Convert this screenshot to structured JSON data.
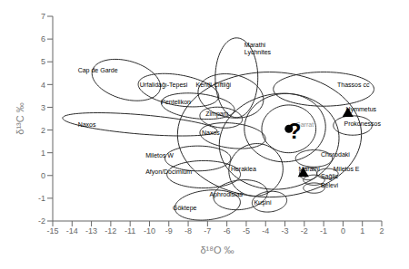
{
  "chart_data": {
    "type": "ellipse",
    "xlabel": "δ¹⁸O ‰",
    "ylabel": "δ¹³C ‰",
    "xlim": [
      -15,
      2
    ],
    "ylim": [
      -2,
      7
    ],
    "xticks": [
      -15,
      -14,
      -13,
      -12,
      -11,
      -10,
      -9,
      -8,
      -7,
      -6,
      -5,
      -4,
      -3,
      -2,
      -1,
      0,
      1,
      2
    ],
    "yticks": [
      -2,
      -1,
      0,
      1,
      2,
      3,
      4,
      5,
      6,
      7
    ],
    "grid": false,
    "color": "#2a2a2a",
    "ellipses": [
      {
        "cx": -11.2,
        "cy": 4.2,
        "w": 3.6,
        "h": 1.7,
        "angle": -12
      },
      {
        "cx": -10.5,
        "cy": 2.25,
        "w": 8.0,
        "h": 0.85,
        "angle": -4
      },
      {
        "cx": -8.5,
        "cy": 3.75,
        "w": 4.2,
        "h": 1.35,
        "angle": -8
      },
      {
        "cx": -7.5,
        "cy": 3.05,
        "w": 3.8,
        "h": 1.1,
        "angle": -5
      },
      {
        "cx": -7.5,
        "cy": 0.75,
        "w": 3.4,
        "h": 1.1,
        "angle": 0
      },
      {
        "cx": -7.2,
        "cy": 0.05,
        "w": 3.8,
        "h": 1.2,
        "angle": 0
      },
      {
        "cx": -7.0,
        "cy": -1.3,
        "w": 3.4,
        "h": 1.3,
        "angle": 5
      },
      {
        "cx": -5.5,
        "cy": 4.3,
        "w": 2.2,
        "h": 3.5,
        "angle": 0
      },
      {
        "cx": -5.8,
        "cy": 3.5,
        "w": 3.4,
        "h": 1.9,
        "angle": -8
      },
      {
        "cx": -6.3,
        "cy": 2.55,
        "w": 2.2,
        "h": 0.9,
        "angle": -5
      },
      {
        "cx": -5.7,
        "cy": 1.75,
        "w": 3.4,
        "h": 1.1,
        "angle": -5
      },
      {
        "cx": -4.5,
        "cy": 0.25,
        "w": 2.8,
        "h": 2.3,
        "angle": 5
      },
      {
        "cx": -5.3,
        "cy": -0.85,
        "w": 2.8,
        "h": 1.3,
        "angle": 5
      },
      {
        "cx": -3.8,
        "cy": -1.15,
        "w": 1.8,
        "h": 0.9,
        "angle": 5
      },
      {
        "cx": -1.0,
        "cy": 3.8,
        "w": 5.2,
        "h": 1.5,
        "angle": 0
      },
      {
        "cx": 0.5,
        "cy": 2.2,
        "w": 2.0,
        "h": 0.85,
        "angle": 0
      },
      {
        "cx": -1.5,
        "cy": 0.75,
        "w": 1.9,
        "h": 0.75,
        "angle": 0
      },
      {
        "cx": -1.8,
        "cy": 0.08,
        "w": 0.9,
        "h": 0.55,
        "angle": 0
      },
      {
        "cx": -0.8,
        "cy": 0.08,
        "w": 1.1,
        "h": 0.45,
        "angle": 0
      },
      {
        "cx": -1.5,
        "cy": -0.2,
        "w": 1.1,
        "h": 0.45,
        "angle": 0
      },
      {
        "cx": -1.5,
        "cy": -0.55,
        "w": 1.1,
        "h": 0.45,
        "angle": 0
      },
      {
        "cx": -2.8,
        "cy": 2.05,
        "w": 2.8,
        "h": 2.1,
        "angle": 0
      },
      {
        "cx": -3.8,
        "cy": 1.8,
        "w": 9.5,
        "h": 5.5,
        "angle": 0
      },
      {
        "cx": -3.3,
        "cy": 1.5,
        "w": 6.2,
        "h": 4.2,
        "angle": 5
      },
      {
        "cx": -3.0,
        "cy": 2.1,
        "w": 4.2,
        "h": 3.0,
        "angle": 2
      }
    ],
    "annotations": [
      {
        "text": "Cap de Garde",
        "x": -13.7,
        "y": 4.45,
        "color": "black"
      },
      {
        "text": "Urfalidağı-Tepesi",
        "x": -10.5,
        "y": 3.8,
        "color": "black"
      },
      {
        "text": "Pentelikon",
        "x": -9.4,
        "y": 3.05,
        "color": "black"
      },
      {
        "text": "Naxos",
        "x": -13.7,
        "y": 2.05,
        "color": "black"
      },
      {
        "text": "Miletos W",
        "x": -10.2,
        "y": 0.7,
        "color": "black"
      },
      {
        "text": "Afyon/Docimium",
        "x": -10.2,
        "y": 0.0,
        "color": "black"
      },
      {
        "text": "Göktepe",
        "x": -8.8,
        "y": -1.6,
        "color": "black"
      },
      {
        "text": "Marathi\nLychnites",
        "x": -5.1,
        "y": 5.25,
        "color": "black"
      },
      {
        "text": "Kentli Çiftliği",
        "x": -7.6,
        "y": 3.8,
        "color": "black"
      },
      {
        "text": "Zimparlı",
        "x": -7.1,
        "y": 2.55,
        "color": "black"
      },
      {
        "text": "Naxos",
        "x": -7.3,
        "y": 1.7,
        "color": "black"
      },
      {
        "text": "Heraklea",
        "x": -5.8,
        "y": 0.1,
        "color": "black"
      },
      {
        "text": "Aphrodisias",
        "x": -6.9,
        "y": -1.0,
        "color": "black"
      },
      {
        "text": "Kuşini",
        "x": -4.6,
        "y": -1.35,
        "color": "black"
      },
      {
        "text": "Thassos cc",
        "x": -0.3,
        "y": 3.8,
        "color": "black"
      },
      {
        "text": "Prokonessos",
        "x": 0.05,
        "y": 2.1,
        "color": "black"
      },
      {
        "text": "Hymmetus",
        "x": 0.15,
        "y": 2.72,
        "color": "black"
      },
      {
        "text": "Chorodaki",
        "x": -1.15,
        "y": 0.75,
        "color": "black"
      },
      {
        "text": "Marathi",
        "x": -2.3,
        "y": 0.1,
        "color": "black"
      },
      {
        "text": "Miletos E",
        "x": -0.5,
        "y": 0.1,
        "color": "black"
      },
      {
        "text": "Sağlic",
        "x": -1.15,
        "y": -0.2,
        "color": "black"
      },
      {
        "text": "Belevi",
        "x": -1.15,
        "y": -0.6,
        "color": "black"
      },
      {
        "text": "Garrat",
        "x": -2.45,
        "y": 2.05,
        "color": "#909090"
      }
    ],
    "mark_texts": [
      {
        "text": "?",
        "x": -2.5,
        "y": 1.95,
        "color": "black"
      }
    ],
    "series": [
      {
        "type": "scatter",
        "marker": "circle",
        "color": "black",
        "x": [
          -2.8
        ],
        "values": [
          2.05
        ]
      },
      {
        "type": "scatter",
        "marker": "triangle",
        "color": "black",
        "x": [
          0.25,
          -2.05
        ],
        "values": [
          2.72,
          0.08
        ]
      }
    ]
  }
}
